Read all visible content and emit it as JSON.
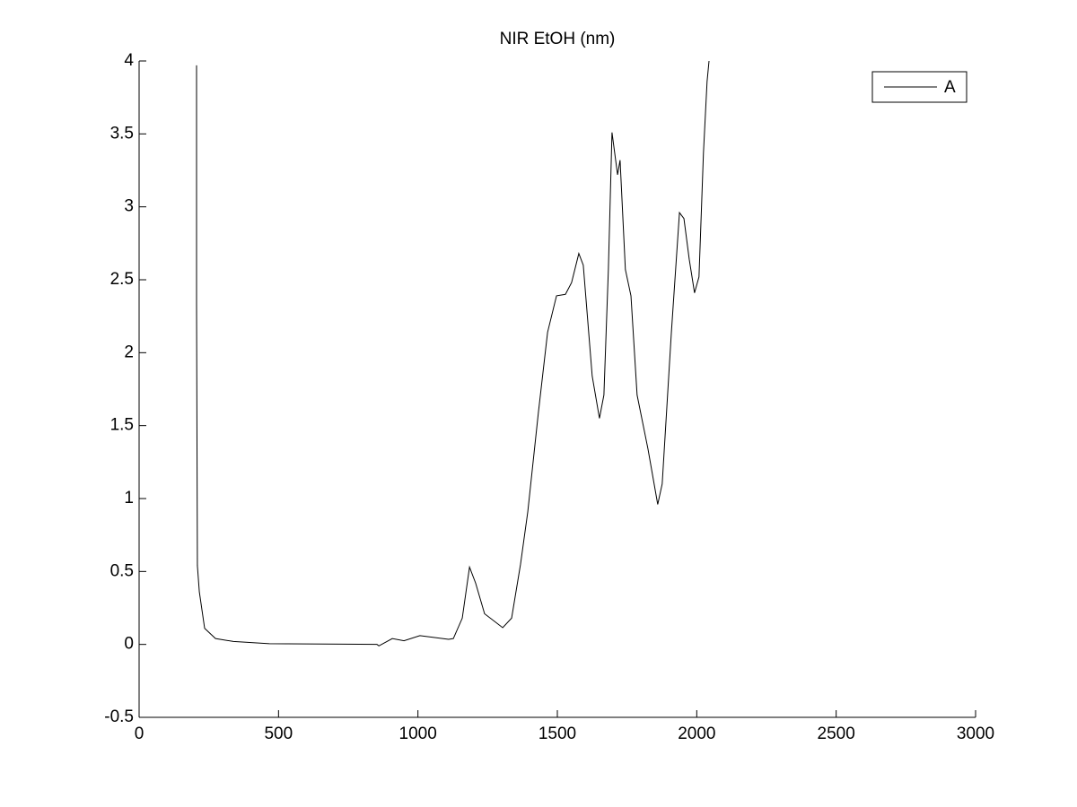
{
  "chart_data": {
    "type": "line",
    "title": "NIR EtOH (nm)",
    "x": [
      206,
      206,
      209,
      216,
      235,
      274,
      338,
      467,
      853,
      860,
      908,
      950,
      1007,
      1110,
      1127,
      1159,
      1185,
      1207,
      1239,
      1304,
      1336,
      1368,
      1394,
      1432,
      1465,
      1497,
      1529,
      1551,
      1577,
      1593,
      1625,
      1651,
      1667,
      1683,
      1696,
      1716,
      1725,
      1744,
      1764,
      1786,
      1825,
      1860,
      1876,
      1909,
      1938,
      1954,
      1973,
      1992,
      2008,
      2024,
      2037,
      2044
    ],
    "series": [
      {
        "name": "A",
        "color": "#000000",
        "values": [
          3.97,
          2.33,
          0.54,
          0.36,
          0.11,
          0.04,
          0.02,
          0.005,
          0,
          -0.01,
          0.04,
          0.025,
          0.06,
          0.035,
          0.04,
          0.18,
          0.53,
          0.42,
          0.21,
          0.115,
          0.18,
          0.55,
          0.91,
          1.59,
          2.14,
          2.39,
          2.4,
          2.48,
          2.68,
          2.6,
          1.84,
          1.55,
          1.71,
          2.57,
          3.51,
          3.22,
          3.32,
          2.57,
          2.39,
          1.71,
          1.34,
          0.96,
          1.1,
          2.14,
          2.96,
          2.92,
          2.64,
          2.41,
          2.52,
          3.37,
          3.86,
          4.0
        ]
      }
    ],
    "xlim": [
      0,
      3000
    ],
    "xticks": [
      0,
      500,
      1000,
      1500,
      2000,
      2500,
      3000
    ],
    "ylim": [
      -0.5,
      4
    ],
    "yticks": [
      -0.5,
      0,
      0.5,
      1,
      1.5,
      2,
      2.5,
      3,
      3.5,
      4
    ],
    "legend": "northeast",
    "grid": false
  }
}
